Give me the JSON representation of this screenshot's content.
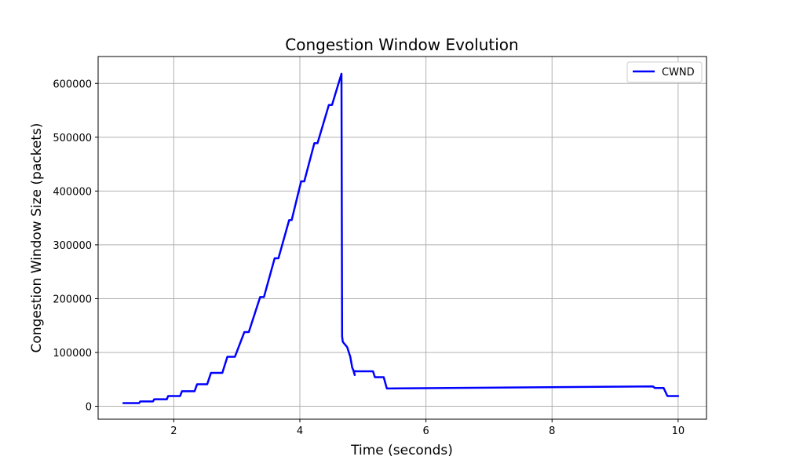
{
  "chart_data": {
    "type": "line",
    "title": "Congestion Window Evolution",
    "xlabel": "Time (seconds)",
    "ylabel": "Congestion Window Size (packets)",
    "xlim": [
      0.8,
      10.45
    ],
    "ylim": [
      -24000,
      650000
    ],
    "xticks": [
      2,
      4,
      6,
      8,
      10
    ],
    "yticks": [
      0,
      100000,
      200000,
      300000,
      400000,
      500000,
      600000
    ],
    "grid": true,
    "legend": "top-right",
    "colors": {
      "CWND": "#0000ff"
    },
    "series": [
      {
        "name": "CWND",
        "x": [
          1.2,
          1.45,
          1.47,
          1.67,
          1.69,
          1.89,
          1.91,
          2.1,
          2.13,
          2.33,
          2.37,
          2.53,
          2.59,
          2.77,
          2.85,
          2.97,
          3.12,
          3.19,
          3.37,
          3.43,
          3.6,
          3.66,
          3.83,
          3.87,
          4.02,
          4.07,
          4.23,
          4.28,
          4.46,
          4.51,
          4.66,
          4.67,
          4.68,
          4.7,
          4.75,
          4.8,
          4.83,
          4.86,
          4.87,
          4.85,
          4.89,
          5.16,
          5.19,
          5.33,
          5.38,
          9.6,
          9.63,
          9.77,
          9.83,
          10.0
        ],
        "y": [
          6000,
          6000,
          9000,
          9000,
          13000,
          13000,
          19000,
          19000,
          28000,
          28000,
          41000,
          41000,
          62000,
          62000,
          92000,
          92000,
          138000,
          138000,
          203000,
          203000,
          275000,
          275000,
          346000,
          346000,
          418000,
          418000,
          489000,
          489000,
          560000,
          560000,
          618000,
          130000,
          120000,
          117000,
          110000,
          92000,
          72000,
          64000,
          58000,
          66000,
          65000,
          65000,
          54000,
          54000,
          33000,
          37000,
          34000,
          34000,
          19000,
          19000
        ]
      }
    ]
  }
}
